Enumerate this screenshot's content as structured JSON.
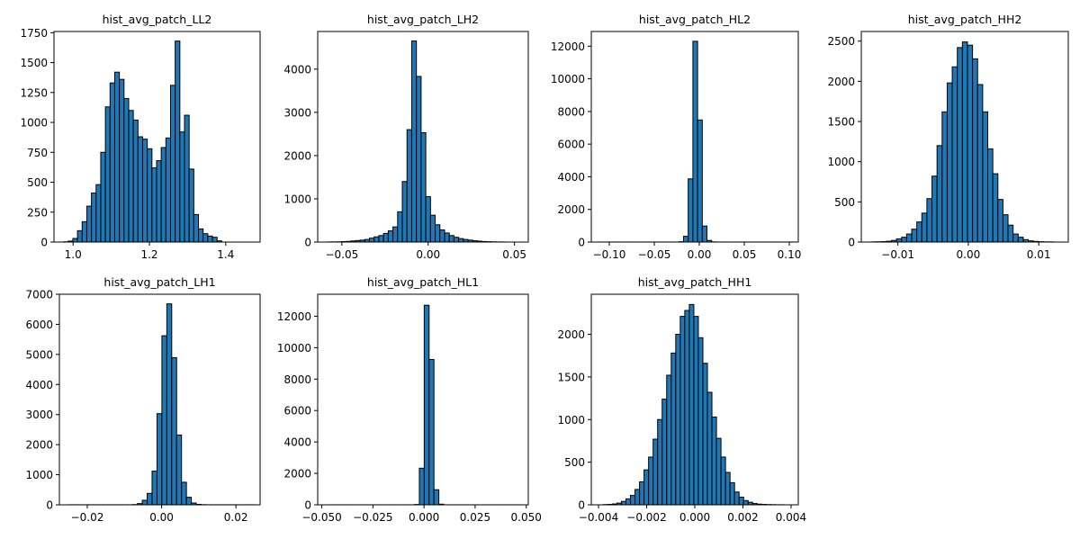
{
  "figure": {
    "background": "#ffffff",
    "bar_color": "#1f77b4",
    "edge_color": "#000000"
  },
  "chart_data": [
    {
      "type": "bar",
      "title": "hist_avg_patch_LL2",
      "xlim": [
        0.95,
        1.49
      ],
      "ylim": [
        0,
        1760
      ],
      "xticks": [
        1.0,
        1.2,
        1.4
      ],
      "xtick_labels": [
        "1.0",
        "1.2",
        "1.4"
      ],
      "yticks": [
        0,
        250,
        500,
        750,
        1000,
        1250,
        1500,
        1750
      ],
      "ytick_labels": [
        "0",
        "250",
        "500",
        "750",
        "1000",
        "1250",
        "1500",
        "1750"
      ],
      "bin_start": 0.975,
      "bin_width": 0.01219,
      "counts": [
        2,
        8,
        30,
        95,
        170,
        300,
        410,
        480,
        750,
        1130,
        1330,
        1420,
        1360,
        1200,
        1100,
        1020,
        880,
        860,
        780,
        620,
        680,
        790,
        870,
        1310,
        1680,
        920,
        1060,
        610,
        230,
        110,
        70,
        50,
        40,
        10
      ]
    },
    {
      "type": "bar",
      "title": "hist_avg_patch_LH2",
      "xlim": [
        -0.064,
        0.058
      ],
      "ylim": [
        0,
        4870
      ],
      "xticks": [
        -0.05,
        0.0,
        0.05
      ],
      "xtick_labels": [
        "−0.05",
        "0.00",
        "0.05"
      ],
      "yticks": [
        0,
        1000,
        2000,
        3000,
        4000
      ],
      "ytick_labels": [
        "0",
        "1000",
        "2000",
        "3000",
        "4000"
      ],
      "bin_start": -0.0585,
      "bin_width": 0.00272,
      "counts": [
        2,
        3,
        5,
        10,
        15,
        25,
        35,
        45,
        60,
        90,
        120,
        150,
        200,
        260,
        350,
        700,
        1400,
        2600,
        4650,
        3830,
        2530,
        1050,
        620,
        400,
        280,
        210,
        150,
        110,
        80,
        60,
        45,
        30,
        20,
        12,
        8,
        5,
        3,
        2
      ]
    },
    {
      "type": "bar",
      "title": "hist_avg_patch_HL2",
      "xlim": [
        -0.12,
        0.11
      ],
      "ylim": [
        0,
        12900
      ],
      "xticks": [
        -0.1,
        -0.05,
        0.0,
        0.05,
        0.1
      ],
      "xtick_labels": [
        "−0.10",
        "−0.05",
        "0.00",
        "0.05",
        "0.10"
      ],
      "yticks": [
        0,
        2000,
        4000,
        6000,
        8000,
        10000,
        12000
      ],
      "ytick_labels": [
        "0",
        "2000",
        "4000",
        "6000",
        "8000",
        "10000",
        "12000"
      ],
      "bin_start": -0.1113,
      "bin_width": 0.00521,
      "counts": [
        2,
        2,
        2,
        2,
        2,
        2,
        2,
        2,
        2,
        2,
        2,
        2,
        2,
        2,
        2,
        2,
        2,
        20,
        350,
        3870,
        12300,
        7480,
        980,
        100,
        10,
        2,
        2,
        2,
        2,
        2,
        2,
        2,
        2,
        2,
        2,
        2,
        2,
        2,
        2,
        2,
        2,
        2
      ]
    },
    {
      "type": "bar",
      "title": "hist_avg_patch_HH2",
      "xlim": [
        -0.0152,
        0.0142
      ],
      "ylim": [
        0,
        2620
      ],
      "xticks": [
        -0.01,
        0.0,
        0.01
      ],
      "xtick_labels": [
        "−0.01",
        "0.00",
        "0.01"
      ],
      "yticks": [
        0,
        500,
        1000,
        1500,
        2000,
        2500
      ],
      "ytick_labels": [
        "0",
        "500",
        "1000",
        "1500",
        "2000",
        "2500"
      ],
      "bin_start": -0.0138,
      "bin_width": 0.00072,
      "counts": [
        2,
        3,
        5,
        10,
        20,
        40,
        60,
        100,
        160,
        250,
        360,
        540,
        820,
        1200,
        1620,
        1980,
        2180,
        2420,
        2490,
        2450,
        2280,
        1960,
        1620,
        1160,
        850,
        530,
        340,
        210,
        100,
        60,
        30,
        15,
        8,
        4,
        2,
        2
      ]
    },
    {
      "type": "bar",
      "title": "hist_avg_patch_LH1",
      "xlim": [
        -0.0275,
        0.0265
      ],
      "ylim": [
        0,
        7000
      ],
      "xticks": [
        -0.02,
        0.0,
        0.02
      ],
      "xtick_labels": [
        "−0.02",
        "0.00",
        "0.02"
      ],
      "yticks": [
        0,
        1000,
        2000,
        3000,
        4000,
        5000,
        6000,
        7000
      ],
      "ytick_labels": [
        "0",
        "1000",
        "2000",
        "3000",
        "4000",
        "5000",
        "6000",
        "7000"
      ],
      "bin_start": -0.025,
      "bin_width": 0.00132,
      "counts": [
        2,
        2,
        2,
        2,
        2,
        2,
        2,
        2,
        2,
        2,
        2,
        2,
        2,
        8,
        40,
        150,
        380,
        1120,
        3030,
        5620,
        6680,
        4890,
        2320,
        750,
        250,
        60,
        15,
        5,
        2,
        2,
        2,
        2,
        2,
        2,
        2,
        2,
        2,
        2
      ]
    },
    {
      "type": "bar",
      "title": "hist_avg_patch_HL1",
      "xlim": [
        -0.052,
        0.051
      ],
      "ylim": [
        0,
        13400
      ],
      "xticks": [
        -0.05,
        -0.025,
        0.0,
        0.025,
        0.05
      ],
      "xtick_labels": [
        "−0.050",
        "−0.025",
        "0.000",
        "0.025",
        "0.050"
      ],
      "yticks": [
        0,
        2000,
        4000,
        6000,
        8000,
        10000,
        12000
      ],
      "ytick_labels": [
        "0",
        "2000",
        "4000",
        "6000",
        "8000",
        "10000",
        "12000"
      ],
      "bin_start": -0.0475,
      "bin_width": 0.00238,
      "counts": [
        2,
        2,
        2,
        2,
        2,
        2,
        2,
        2,
        2,
        2,
        2,
        2,
        2,
        2,
        2,
        2,
        2,
        2,
        20,
        2330,
        12700,
        9250,
        960,
        40,
        2,
        2,
        2,
        2,
        2,
        2,
        2,
        2,
        2,
        2,
        2,
        2,
        2,
        2,
        2,
        2
      ]
    },
    {
      "type": "bar",
      "title": "hist_avg_patch_HH1",
      "xlim": [
        -0.0043,
        0.0043
      ],
      "ylim": [
        0,
        2470
      ],
      "xticks": [
        -0.004,
        -0.002,
        0.0,
        0.002,
        0.004
      ],
      "xtick_labels": [
        "−0.004",
        "−0.002",
        "0.000",
        "0.002",
        "0.004"
      ],
      "yticks": [
        0,
        500,
        1000,
        1500,
        2000
      ],
      "ytick_labels": [
        "0",
        "500",
        "1000",
        "1500",
        "2000"
      ],
      "bin_start": -0.0038,
      "bin_width": 0.000188,
      "counts": [
        3,
        5,
        10,
        20,
        40,
        70,
        110,
        180,
        270,
        410,
        560,
        770,
        1000,
        1240,
        1520,
        1780,
        2000,
        2210,
        2280,
        2350,
        2210,
        1960,
        1660,
        1320,
        1030,
        780,
        560,
        380,
        260,
        150,
        90,
        50,
        30,
        15,
        8,
        5,
        3,
        2,
        1,
        1
      ]
    }
  ]
}
